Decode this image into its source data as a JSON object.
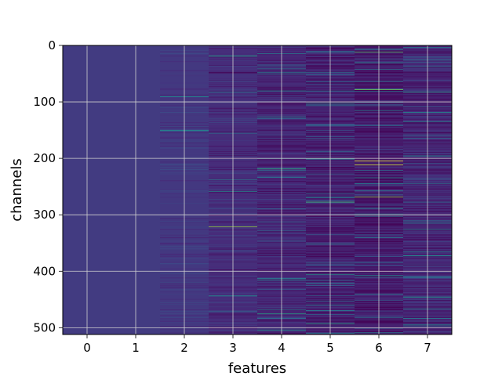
{
  "chart_data": {
    "type": "heatmap",
    "title": "",
    "xlabel": "features",
    "ylabel": "channels",
    "colormap": "viridis",
    "grid": true,
    "x_categories": [
      "0",
      "1",
      "2",
      "3",
      "4",
      "5",
      "6",
      "7"
    ],
    "y_range": [
      0,
      512
    ],
    "y_inverted": true,
    "y_ticks": [
      "0",
      "100",
      "200",
      "300",
      "400",
      "500"
    ],
    "column_stats": [
      {
        "feature": 0,
        "base": 0.18,
        "spread": 0.02,
        "stripe_density": 0.0
      },
      {
        "feature": 1,
        "base": 0.18,
        "spread": 0.02,
        "stripe_density": 0.0
      },
      {
        "feature": 2,
        "base": 0.17,
        "spread": 0.06,
        "stripe_density": 0.25
      },
      {
        "feature": 3,
        "base": 0.13,
        "spread": 0.07,
        "stripe_density": 0.45
      },
      {
        "feature": 4,
        "base": 0.11,
        "spread": 0.08,
        "stripe_density": 0.6
      },
      {
        "feature": 5,
        "base": 0.09,
        "spread": 0.08,
        "stripe_density": 0.75
      },
      {
        "feature": 6,
        "base": 0.08,
        "spread": 0.08,
        "stripe_density": 0.8
      },
      {
        "feature": 7,
        "base": 0.11,
        "spread": 0.08,
        "stripe_density": 0.7
      }
    ],
    "highlights": [
      {
        "feature": 3,
        "channel": 18,
        "value": 0.55
      },
      {
        "feature": 3,
        "channel": 47,
        "value": 0.02
      },
      {
        "feature": 3,
        "channel": 258,
        "value": 0.5
      },
      {
        "feature": 3,
        "channel": 321,
        "value": 0.85
      },
      {
        "feature": 4,
        "channel": 218,
        "value": 0.6
      },
      {
        "feature": 4,
        "channel": 475,
        "value": 0.6
      },
      {
        "feature": 5,
        "channel": 277,
        "value": 0.7
      },
      {
        "feature": 5,
        "channel": 405,
        "value": 0.55
      },
      {
        "feature": 5,
        "channel": 492,
        "value": 0.6
      },
      {
        "feature": 6,
        "channel": 11,
        "value": 0.75
      },
      {
        "feature": 6,
        "channel": 78,
        "value": 0.8
      },
      {
        "feature": 6,
        "channel": 204,
        "value": 1.0
      },
      {
        "feature": 6,
        "channel": 211,
        "value": 0.95
      },
      {
        "feature": 6,
        "channel": 268,
        "value": 0.85
      },
      {
        "feature": 6,
        "channel": 30,
        "value": 0.5
      },
      {
        "feature": 7,
        "channel": 82,
        "value": 0.6
      },
      {
        "feature": 7,
        "channel": 118,
        "value": 0.5
      }
    ]
  }
}
